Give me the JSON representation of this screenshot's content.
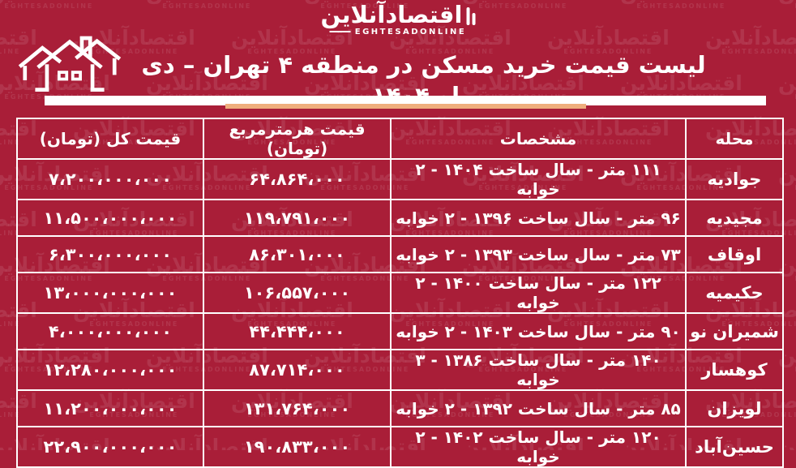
{
  "brand": {
    "logo_fa": "اقتصادآنلاین",
    "logo_en": "EGHTESADONLINE"
  },
  "header": {
    "title": "لیست قیمت خرید مسکن در منطقه ۴ تهران – دی ماه ۱۴۰۴"
  },
  "colors": {
    "background": "#A91E38",
    "accent_bar": "#EFAE7D",
    "table_border": "#FFFFFF",
    "text": "#FFFFFF"
  },
  "table": {
    "columns": [
      {
        "key": "neighborhood",
        "label": "محله"
      },
      {
        "key": "specs",
        "label": "مشخصات"
      },
      {
        "key": "price_per_m2",
        "label": "قیمت هرمترمربع (تومان)"
      },
      {
        "key": "total_price",
        "label": "قیمت کل (تومان)"
      }
    ],
    "rows": [
      [
        "جوادیه",
        "۱۱۱ متر - سال ساخت ۱۴۰۴ - ۲ خوابه",
        "۶۴،۸۶۴،۰۰۰",
        "۷،۲۰۰،۰۰۰،۰۰۰"
      ],
      [
        "مجیدیه",
        "۹۶ متر - سال ساخت ۱۳۹۶ - ۲ خوابه",
        "۱۱۹،۷۹۱،۰۰۰",
        "۱۱،۵۰۰،۰۰۰،۰۰۰"
      ],
      [
        "اوقاف",
        "۷۳ متر - سال ساخت ۱۳۹۳ - ۲ خوابه",
        "۸۶،۳۰۱،۰۰۰",
        "۶،۳۰۰،۰۰۰،۰۰۰"
      ],
      [
        "حکیمیه",
        "۱۲۲ متر - سال ساخت ۱۴۰۰ - ۲ خوابه",
        "۱۰۶،۵۵۷،۰۰۰",
        "۱۳،۰۰۰،۰۰۰،۰۰۰"
      ],
      [
        "شمیران نو",
        "۹۰ متر - سال ساخت ۱۴۰۳ - ۲ خوابه",
        "۴۴،۴۴۴،۰۰۰",
        "۴،۰۰۰،۰۰۰،۰۰۰"
      ],
      [
        "کوهسار",
        "۱۴۰ متر - سال ساخت ۱۳۸۶ - ۳ خوابه",
        "۸۷،۷۱۴،۰۰۰",
        "۱۲،۲۸۰،۰۰۰،۰۰۰"
      ],
      [
        "لویزان",
        "۸۵ متر - سال ساخت ۱۳۹۲ - ۲ خوابه",
        "۱۳۱،۷۶۴،۰۰۰",
        "۱۱،۲۰۰،۰۰۰،۰۰۰"
      ],
      [
        "حسین‌آباد",
        "۱۲۰ متر - سال ساخت ۱۴۰۲ - ۲ خوابه",
        "۱۹۰،۸۳۳،۰۰۰",
        "۲۲،۹۰۰،۰۰۰،۰۰۰"
      ]
    ]
  },
  "chart_data": {
    "type": "table",
    "title": "لیست قیمت خرید مسکن در منطقه ۴ تهران – دی ماه ۱۴۰۴",
    "columns": [
      "محله",
      "مشخصات",
      "قیمت هرمترمربع (تومان)",
      "قیمت کل (تومان)"
    ],
    "rows": [
      {
        "neighborhood": "جوادیه",
        "area_m2": 111,
        "year_built": 1404,
        "bedrooms": 2,
        "price_per_m2_toman": 64864000,
        "total_price_toman": 7200000000
      },
      {
        "neighborhood": "مجیدیه",
        "area_m2": 96,
        "year_built": 1396,
        "bedrooms": 2,
        "price_per_m2_toman": 119791000,
        "total_price_toman": 11500000000
      },
      {
        "neighborhood": "اوقاف",
        "area_m2": 73,
        "year_built": 1393,
        "bedrooms": 2,
        "price_per_m2_toman": 86301000,
        "total_price_toman": 6300000000
      },
      {
        "neighborhood": "حکیمیه",
        "area_m2": 122,
        "year_built": 1400,
        "bedrooms": 2,
        "price_per_m2_toman": 106557000,
        "total_price_toman": 13000000000
      },
      {
        "neighborhood": "شمیران نو",
        "area_m2": 90,
        "year_built": 1403,
        "bedrooms": 2,
        "price_per_m2_toman": 44444000,
        "total_price_toman": 4000000000
      },
      {
        "neighborhood": "کوهسار",
        "area_m2": 140,
        "year_built": 1386,
        "bedrooms": 3,
        "price_per_m2_toman": 87714000,
        "total_price_toman": 12280000000
      },
      {
        "neighborhood": "لویزان",
        "area_m2": 85,
        "year_built": 1392,
        "bedrooms": 2,
        "price_per_m2_toman": 131764000,
        "total_price_toman": 11200000000
      },
      {
        "neighborhood": "حسین‌آباد",
        "area_m2": 120,
        "year_built": 1402,
        "bedrooms": 2,
        "price_per_m2_toman": 190833000,
        "total_price_toman": 22900000000
      }
    ]
  }
}
